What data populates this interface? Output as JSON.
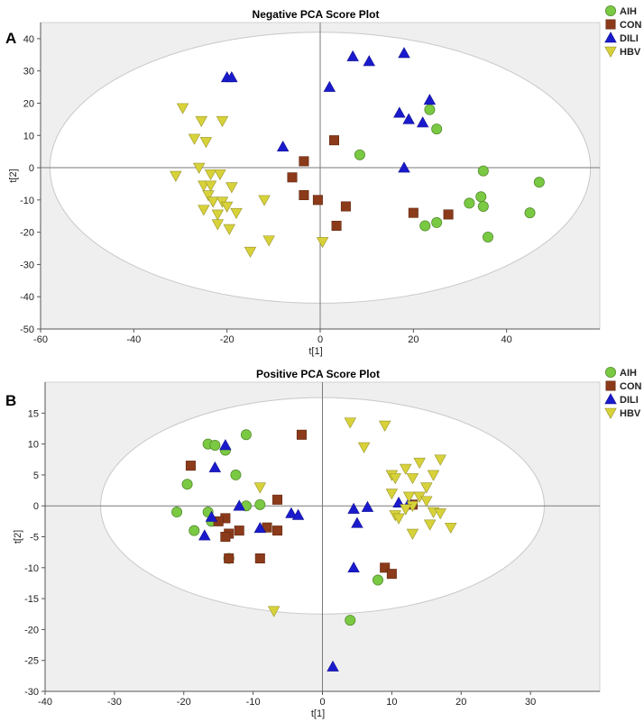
{
  "figure": {
    "panels": [
      {
        "letter": "A",
        "chart_data": {
          "type": "scatter",
          "title": "Negative PCA Score Plot",
          "xlabel": "t[1]",
          "ylabel": "t[2]",
          "xlim": [
            -60,
            60
          ],
          "ylim": [
            -50,
            45
          ],
          "xticks": [
            -60,
            -40,
            -20,
            0,
            20,
            40
          ],
          "yticks": [
            -50,
            -40,
            -30,
            -20,
            -10,
            0,
            10,
            20,
            30,
            40
          ],
          "ellipse": {
            "cx": 0,
            "cy": 0,
            "rx": 58,
            "ry": 42
          },
          "legend_position": "top-right",
          "series": [
            {
              "name": "AIH",
              "marker": "circle",
              "color": "#7ac943",
              "points": [
                [
                  23.5,
                  18
                ],
                [
                  25,
                  12
                ],
                [
                  8.5,
                  4
                ],
                [
                  35,
                  -1
                ],
                [
                  47,
                  -4.5
                ],
                [
                  34.5,
                  -9
                ],
                [
                  35,
                  -12
                ],
                [
                  32,
                  -11
                ],
                [
                  22.5,
                  -18
                ],
                [
                  25,
                  -17
                ],
                [
                  36,
                  -21.5
                ],
                [
                  45,
                  -14
                ]
              ]
            },
            {
              "name": "CON",
              "marker": "square",
              "color": "#8b3a1a",
              "points": [
                [
                  3,
                  8.5
                ],
                [
                  -3.5,
                  2
                ],
                [
                  -6,
                  -3
                ],
                [
                  -3.5,
                  -8.5
                ],
                [
                  -0.5,
                  -10
                ],
                [
                  5.5,
                  -12
                ],
                [
                  3.5,
                  -18
                ],
                [
                  20,
                  -14
                ],
                [
                  27.5,
                  -14.5
                ]
              ]
            },
            {
              "name": "DILI",
              "marker": "triangle-up",
              "color": "#1a1acd",
              "points": [
                [
                  -20,
                  28
                ],
                [
                  -19,
                  28
                ],
                [
                  7,
                  34.5
                ],
                [
                  10.5,
                  33
                ],
                [
                  18,
                  35.5
                ],
                [
                  2,
                  25
                ],
                [
                  23.5,
                  21
                ],
                [
                  17,
                  17
                ],
                [
                  19,
                  15
                ],
                [
                  22,
                  14
                ],
                [
                  -8,
                  6.5
                ],
                [
                  18,
                  0
                ]
              ]
            },
            {
              "name": "HBV",
              "marker": "triangle-down",
              "color": "#d8d23a",
              "points": [
                [
                  -29.5,
                  18.5
                ],
                [
                  -25.5,
                  14.5
                ],
                [
                  -21,
                  14.5
                ],
                [
                  -27,
                  9
                ],
                [
                  -24.5,
                  8
                ],
                [
                  -26,
                  0
                ],
                [
                  -31,
                  -2.5
                ],
                [
                  -23.5,
                  -2
                ],
                [
                  -21.5,
                  -2
                ],
                [
                  -25,
                  -5.5
                ],
                [
                  -23.5,
                  -5.5
                ],
                [
                  -19,
                  -6
                ],
                [
                  -24,
                  -8.5
                ],
                [
                  -23,
                  -10.5
                ],
                [
                  -21,
                  -10.5
                ],
                [
                  -20,
                  -12
                ],
                [
                  -25,
                  -13
                ],
                [
                  -22,
                  -14.5
                ],
                [
                  -18,
                  -14
                ],
                [
                  -12,
                  -10
                ],
                [
                  -22,
                  -17.5
                ],
                [
                  -19.5,
                  -19
                ],
                [
                  -11,
                  -22.5
                ],
                [
                  -15,
                  -26
                ],
                [
                  0.5,
                  -23
                ]
              ]
            }
          ]
        }
      },
      {
        "letter": "B",
        "chart_data": {
          "type": "scatter",
          "title": "Positive PCA Score Plot",
          "xlabel": "t[1]",
          "ylabel": "t[2]",
          "xlim": [
            -40,
            40
          ],
          "ylim": [
            -30,
            20
          ],
          "xticks": [
            -40,
            -30,
            -20,
            -10,
            0,
            10,
            20,
            30
          ],
          "yticks": [
            -30,
            -25,
            -20,
            -15,
            -10,
            -5,
            0,
            5,
            10,
            15
          ],
          "ellipse": {
            "cx": 0,
            "cy": 0,
            "rx": 32,
            "ry": 17.5
          },
          "legend_position": "top-right",
          "series": [
            {
              "name": "AIH",
              "marker": "circle",
              "color": "#7ac943",
              "points": [
                [
                  -16.5,
                  10
                ],
                [
                  -15.5,
                  9.8
                ],
                [
                  -14,
                  9
                ],
                [
                  -11,
                  11.5
                ],
                [
                  -12.5,
                  5
                ],
                [
                  -19.5,
                  3.5
                ],
                [
                  -21,
                  -1
                ],
                [
                  -16.5,
                  -1
                ],
                [
                  -16,
                  -2.5
                ],
                [
                  -11,
                  0
                ],
                [
                  -9,
                  0.2
                ],
                [
                  -18.5,
                  -4
                ],
                [
                  -13.5,
                  -8.5
                ],
                [
                  4,
                  -18.5
                ],
                [
                  8,
                  -12
                ]
              ]
            },
            {
              "name": "CON",
              "marker": "square",
              "color": "#8b3a1a",
              "points": [
                [
                  -19,
                  6.5
                ],
                [
                  -3,
                  11.5
                ],
                [
                  -6.5,
                  1
                ],
                [
                  -14,
                  -2
                ],
                [
                  -15,
                  -2.5
                ],
                [
                  -12,
                  -4
                ],
                [
                  -13.5,
                  -4.5
                ],
                [
                  -14,
                  -5
                ],
                [
                  -8,
                  -3.5
                ],
                [
                  -6.5,
                  -4
                ],
                [
                  -13.5,
                  -8.5
                ],
                [
                  -9,
                  -8.5
                ],
                [
                  9,
                  -10
                ],
                [
                  10,
                  -11
                ],
                [
                  13,
                  0.2
                ]
              ]
            },
            {
              "name": "DILI",
              "marker": "triangle-up",
              "color": "#1a1acd",
              "points": [
                [
                  -14,
                  9.8
                ],
                [
                  -15.5,
                  6.2
                ],
                [
                  -12,
                  0
                ],
                [
                  -4.5,
                  -1.2
                ],
                [
                  -3.5,
                  -1.5
                ],
                [
                  -9,
                  -3.6
                ],
                [
                  -16,
                  -1.8
                ],
                [
                  -17,
                  -4.8
                ],
                [
                  4.5,
                  -0.5
                ],
                [
                  5,
                  -2.8
                ],
                [
                  6.5,
                  -0.2
                ],
                [
                  11,
                  0.5
                ],
                [
                  12.5,
                  0.5
                ],
                [
                  4.5,
                  -10
                ],
                [
                  1.5,
                  -26
                ]
              ]
            },
            {
              "name": "HBV",
              "marker": "triangle-down",
              "color": "#d8d23a",
              "points": [
                [
                  4,
                  13.5
                ],
                [
                  9,
                  13
                ],
                [
                  6,
                  9.5
                ],
                [
                  10,
                  5
                ],
                [
                  10.5,
                  4.5
                ],
                [
                  12,
                  6
                ],
                [
                  14,
                  7
                ],
                [
                  13,
                  4.5
                ],
                [
                  16,
                  5
                ],
                [
                  17,
                  7.5
                ],
                [
                  15,
                  3
                ],
                [
                  10,
                  2
                ],
                [
                  12.5,
                  1.5
                ],
                [
                  14,
                  1.5
                ],
                [
                  15,
                  0.8
                ],
                [
                  13,
                  0
                ],
                [
                  12,
                  -0.5
                ],
                [
                  16,
                  -1
                ],
                [
                  17,
                  -1.2
                ],
                [
                  10.5,
                  -1.5
                ],
                [
                  11,
                  -2
                ],
                [
                  15.5,
                  -3
                ],
                [
                  18.5,
                  -3.5
                ],
                [
                  13,
                  -4.5
                ],
                [
                  -9,
                  3
                ],
                [
                  -7,
                  -17
                ]
              ]
            }
          ]
        }
      }
    ]
  }
}
